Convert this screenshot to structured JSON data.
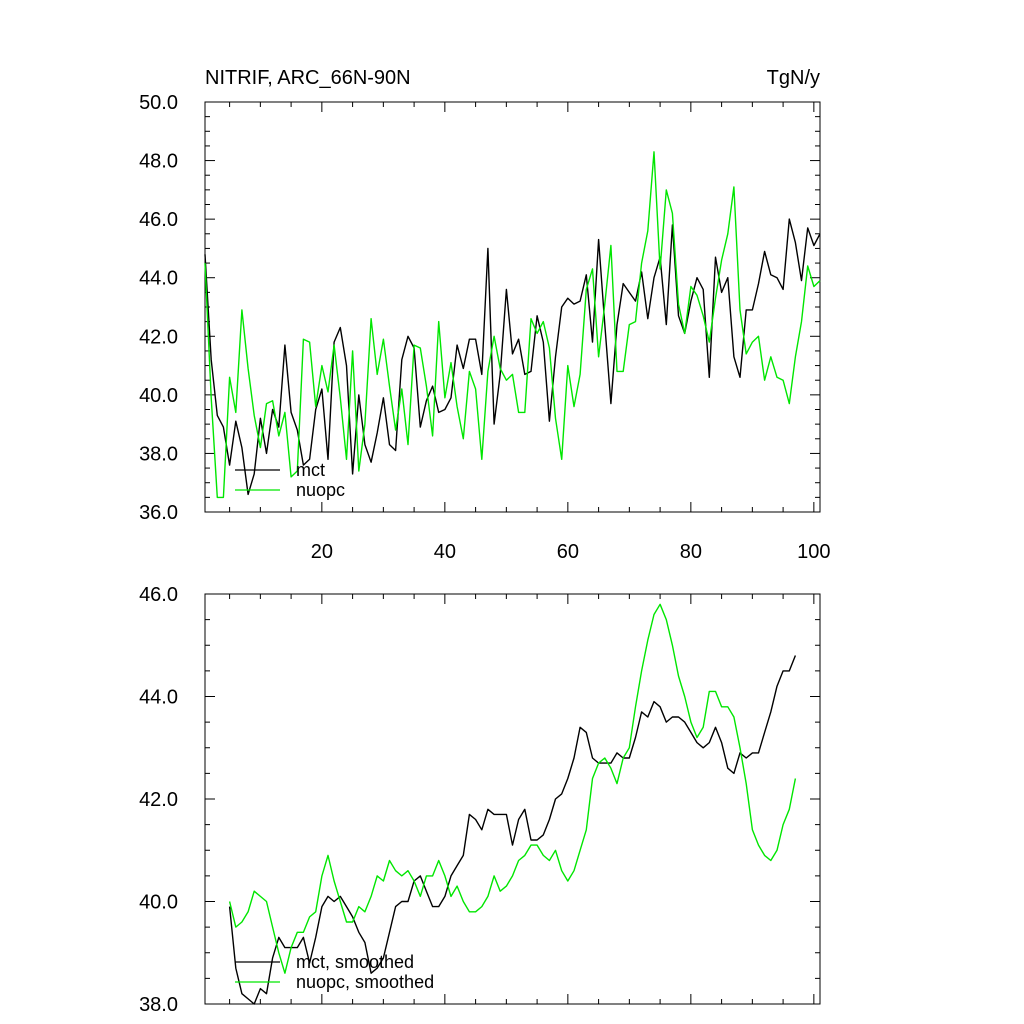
{
  "chart_data": [
    {
      "type": "line",
      "title": "NITRIF, ARC_66N-90N",
      "units": "TgN/y",
      "xlim": [
        1,
        101
      ],
      "ylim": [
        36,
        50
      ],
      "xticks": [
        20,
        40,
        60,
        80,
        100
      ],
      "xtick_labels": [
        "20",
        "40",
        "60",
        "80",
        "100"
      ],
      "yticks": [
        36,
        38,
        40,
        42,
        44,
        46,
        48,
        50
      ],
      "ytick_labels": [
        "36.0",
        "38.0",
        "40.0",
        "42.0",
        "44.0",
        "46.0",
        "48.0",
        "50.0"
      ],
      "legend_position": "bottom-left",
      "series": [
        {
          "name": "mct",
          "color": "#000000",
          "x": [
            1,
            2,
            3,
            4,
            5,
            6,
            7,
            8,
            9,
            10,
            11,
            12,
            13,
            14,
            15,
            16,
            17,
            18,
            19,
            20,
            21,
            22,
            23,
            24,
            25,
            26,
            27,
            28,
            29,
            30,
            31,
            32,
            33,
            34,
            35,
            36,
            37,
            38,
            39,
            40,
            41,
            42,
            43,
            44,
            45,
            46,
            47,
            48,
            49,
            50,
            51,
            52,
            53,
            54,
            55,
            56,
            57,
            58,
            59,
            60,
            61,
            62,
            63,
            64,
            65,
            66,
            67,
            68,
            69,
            70,
            71,
            72,
            73,
            74,
            75,
            76,
            77,
            78,
            79,
            80,
            81,
            82,
            83,
            84,
            85,
            86,
            87,
            88,
            89,
            90,
            91,
            92,
            93,
            94,
            95,
            96,
            97,
            98,
            99,
            100,
            101
          ],
          "values": [
            44.8,
            41.2,
            39.3,
            38.9,
            37.6,
            39.1,
            38.2,
            36.6,
            37.3,
            39.2,
            38.0,
            39.5,
            38.9,
            41.7,
            39.4,
            38.8,
            37.6,
            37.8,
            39.5,
            40.2,
            37.8,
            41.8,
            42.3,
            41.0,
            37.3,
            40.0,
            38.3,
            37.7,
            38.7,
            39.9,
            38.3,
            38.1,
            41.2,
            42.0,
            41.6,
            38.9,
            39.8,
            40.3,
            39.4,
            39.5,
            39.9,
            41.7,
            40.9,
            41.9,
            41.9,
            40.7,
            45.0,
            39.0,
            40.7,
            43.6,
            41.4,
            41.9,
            40.7,
            40.8,
            42.7,
            41.8,
            39.1,
            41.3,
            43.0,
            43.3,
            43.1,
            43.2,
            44.1,
            41.8,
            45.3,
            42.4,
            39.7,
            42.4,
            43.8,
            43.5,
            43.2,
            44.2,
            42.6,
            44.0,
            44.7,
            42.4,
            45.8,
            42.7,
            42.1,
            43.2,
            44.0,
            43.6,
            40.6,
            44.7,
            43.5,
            44.0,
            41.3,
            40.6,
            42.9,
            42.9,
            43.8,
            44.9,
            44.1,
            44.0,
            43.6,
            46.0,
            45.2,
            43.9,
            45.7,
            45.1,
            45.5
          ]
        },
        {
          "name": "nuopc",
          "color": "#00e600",
          "x": [
            1,
            2,
            3,
            4,
            5,
            6,
            7,
            8,
            9,
            10,
            11,
            12,
            13,
            14,
            15,
            16,
            17,
            18,
            19,
            20,
            21,
            22,
            23,
            24,
            25,
            26,
            27,
            28,
            29,
            30,
            31,
            32,
            33,
            34,
            35,
            36,
            37,
            38,
            39,
            40,
            41,
            42,
            43,
            44,
            45,
            46,
            47,
            48,
            49,
            50,
            51,
            52,
            53,
            54,
            55,
            56,
            57,
            58,
            59,
            60,
            61,
            62,
            63,
            64,
            65,
            66,
            67,
            68,
            69,
            70,
            71,
            72,
            73,
            74,
            75,
            76,
            77,
            78,
            79,
            80,
            81,
            82,
            83,
            84,
            85,
            86,
            87,
            88,
            89,
            90,
            91,
            92,
            93,
            94,
            95,
            96,
            97,
            98,
            99,
            100,
            101
          ],
          "values": [
            44.5,
            39.9,
            36.5,
            36.5,
            40.6,
            39.4,
            42.9,
            40.9,
            39.3,
            38.2,
            39.7,
            39.8,
            38.6,
            39.4,
            37.2,
            37.4,
            41.9,
            41.8,
            39.6,
            41.0,
            40.1,
            41.7,
            39.9,
            37.8,
            41.5,
            37.4,
            39.0,
            42.6,
            40.7,
            41.9,
            40.3,
            38.8,
            40.2,
            38.3,
            41.7,
            41.6,
            40.3,
            38.6,
            42.5,
            39.9,
            41.1,
            39.6,
            38.5,
            40.8,
            40.2,
            37.8,
            40.8,
            42.0,
            40.9,
            40.5,
            40.7,
            39.4,
            39.4,
            42.6,
            42.1,
            42.5,
            41.6,
            39.2,
            37.8,
            41.0,
            39.6,
            40.7,
            43.6,
            44.3,
            41.3,
            43.1,
            45.1,
            40.8,
            40.8,
            42.4,
            42.5,
            44.5,
            45.6,
            48.3,
            44.3,
            47.0,
            46.2,
            43.1,
            42.1,
            43.7,
            43.4,
            42.7,
            41.8,
            43.3,
            44.6,
            45.5,
            47.1,
            42.9,
            41.4,
            41.8,
            42.0,
            40.5,
            41.3,
            40.6,
            40.5,
            39.7,
            41.3,
            42.5,
            44.4,
            43.7,
            43.9
          ]
        }
      ]
    },
    {
      "type": "line",
      "title": "",
      "xlim": [
        1,
        101
      ],
      "ylim": [
        38,
        46
      ],
      "xticks": [
        20,
        40,
        60,
        80,
        100
      ],
      "xtick_labels": [],
      "yticks": [
        38,
        40,
        42,
        44,
        46
      ],
      "ytick_labels": [
        "38.0",
        "40.0",
        "42.0",
        "44.0",
        "46.0"
      ],
      "legend_position": "bottom-left",
      "series": [
        {
          "name": "mct, smoothed",
          "color": "#000000",
          "x": [
            5,
            6,
            7,
            8,
            9,
            10,
            11,
            12,
            13,
            14,
            15,
            16,
            17,
            18,
            19,
            20,
            21,
            22,
            23,
            24,
            25,
            26,
            27,
            28,
            29,
            30,
            31,
            32,
            33,
            34,
            35,
            36,
            37,
            38,
            39,
            40,
            41,
            42,
            43,
            44,
            45,
            46,
            47,
            48,
            49,
            50,
            51,
            52,
            53,
            54,
            55,
            56,
            57,
            58,
            59,
            60,
            61,
            62,
            63,
            64,
            65,
            66,
            67,
            68,
            69,
            70,
            71,
            72,
            73,
            74,
            75,
            76,
            77,
            78,
            79,
            80,
            81,
            82,
            83,
            84,
            85,
            86,
            87,
            88,
            89,
            90,
            91,
            92,
            93,
            94,
            95,
            96,
            97
          ],
          "values": [
            39.9,
            38.7,
            38.2,
            38.1,
            38.0,
            38.3,
            38.2,
            38.9,
            39.3,
            39.1,
            39.1,
            39.1,
            39.3,
            38.8,
            39.3,
            39.9,
            40.1,
            40.0,
            40.1,
            39.9,
            39.7,
            39.4,
            39.2,
            38.6,
            38.7,
            38.9,
            39.4,
            39.9,
            40.0,
            40.0,
            40.4,
            40.5,
            40.2,
            39.9,
            39.9,
            40.1,
            40.5,
            40.7,
            40.9,
            41.7,
            41.6,
            41.4,
            41.8,
            41.7,
            41.7,
            41.7,
            41.1,
            41.6,
            41.8,
            41.2,
            41.2,
            41.3,
            41.6,
            42.0,
            42.1,
            42.4,
            42.8,
            43.4,
            43.3,
            42.8,
            42.7,
            42.7,
            42.7,
            42.9,
            42.8,
            42.8,
            43.2,
            43.7,
            43.6,
            43.9,
            43.8,
            43.5,
            43.6,
            43.6,
            43.5,
            43.3,
            43.1,
            43.0,
            43.1,
            43.4,
            43.1,
            42.6,
            42.5,
            42.9,
            42.8,
            42.9,
            42.9,
            43.3,
            43.7,
            44.2,
            44.5,
            44.5,
            44.8
          ]
        },
        {
          "name": "nuopc, smoothed",
          "color": "#00e600",
          "x": [
            5,
            6,
            7,
            8,
            9,
            10,
            11,
            12,
            13,
            14,
            15,
            16,
            17,
            18,
            19,
            20,
            21,
            22,
            23,
            24,
            25,
            26,
            27,
            28,
            29,
            30,
            31,
            32,
            33,
            34,
            35,
            36,
            37,
            38,
            39,
            40,
            41,
            42,
            43,
            44,
            45,
            46,
            47,
            48,
            49,
            50,
            51,
            52,
            53,
            54,
            55,
            56,
            57,
            58,
            59,
            60,
            61,
            62,
            63,
            64,
            65,
            66,
            67,
            68,
            69,
            70,
            71,
            72,
            73,
            74,
            75,
            76,
            77,
            78,
            79,
            80,
            81,
            82,
            83,
            84,
            85,
            86,
            87,
            88,
            89,
            90,
            91,
            92,
            93,
            94,
            95,
            96,
            97
          ],
          "values": [
            40.0,
            39.5,
            39.6,
            39.8,
            40.2,
            40.1,
            40.0,
            39.5,
            39.0,
            38.6,
            39.1,
            39.4,
            39.4,
            39.7,
            39.8,
            40.5,
            40.9,
            40.4,
            40.0,
            39.6,
            39.6,
            39.9,
            39.8,
            40.1,
            40.5,
            40.4,
            40.8,
            40.6,
            40.5,
            40.6,
            40.4,
            40.1,
            40.5,
            40.5,
            40.8,
            40.5,
            40.1,
            40.3,
            40.0,
            39.8,
            39.8,
            39.9,
            40.1,
            40.5,
            40.2,
            40.3,
            40.5,
            40.8,
            40.9,
            41.1,
            41.1,
            40.9,
            40.8,
            41.0,
            40.6,
            40.4,
            40.6,
            41.0,
            41.4,
            42.4,
            42.7,
            42.8,
            42.6,
            42.3,
            42.8,
            43.0,
            43.8,
            44.5,
            45.1,
            45.6,
            45.8,
            45.5,
            45.0,
            44.4,
            44.0,
            43.5,
            43.2,
            43.4,
            44.1,
            44.1,
            43.8,
            43.8,
            43.6,
            43.0,
            42.3,
            41.4,
            41.1,
            40.9,
            40.8,
            41.0,
            41.5,
            41.8,
            42.4
          ]
        }
      ]
    }
  ]
}
